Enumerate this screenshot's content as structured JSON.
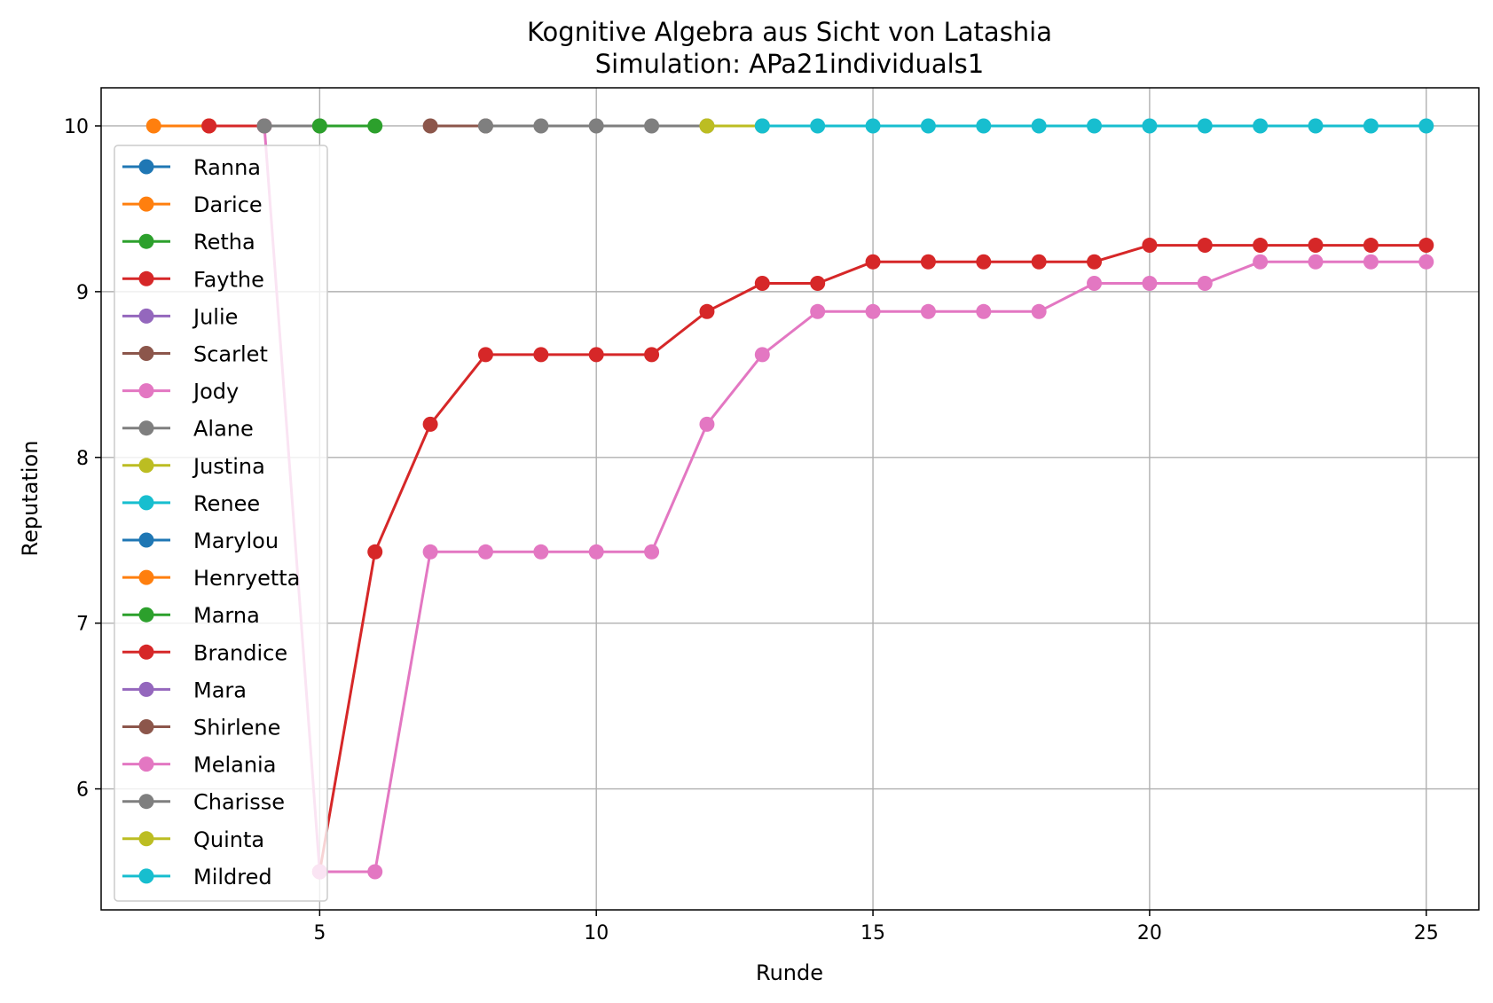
{
  "chart_data": {
    "type": "line",
    "title": "Kognitive Algebra aus Sicht von Latashia",
    "subtitle": "Simulation: APa21individuals1",
    "xlabel": "Runde",
    "ylabel": "Reputation",
    "xlim": [
      1.05,
      25.95
    ],
    "ylim": [
      5.27,
      10.23
    ],
    "xticks": [
      5,
      10,
      15,
      20,
      25
    ],
    "yticks": [
      6,
      7,
      8,
      9,
      10
    ],
    "grid": true,
    "legend_position": "left",
    "series": [
      {
        "name": "Ranna",
        "color": "#1f77b4",
        "x": [],
        "y": []
      },
      {
        "name": "Darice",
        "color": "#ff7f0e",
        "x": [
          2,
          3
        ],
        "y": [
          10,
          10
        ]
      },
      {
        "name": "Retha",
        "color": "#2ca02c",
        "x": [],
        "y": []
      },
      {
        "name": "Faythe",
        "color": "#d62728",
        "x": [
          3,
          4
        ],
        "y": [
          10,
          10
        ]
      },
      {
        "name": "Julie",
        "color": "#9467bd",
        "x": [],
        "y": []
      },
      {
        "name": "Scarlet",
        "color": "#8c564b",
        "x": [],
        "y": []
      },
      {
        "name": "Jody",
        "color": "#e377c2",
        "x": [
          4,
          5
        ],
        "y": [
          10,
          5.5
        ]
      },
      {
        "name": "Alane",
        "color": "#7f7f7f",
        "x": [
          4,
          5
        ],
        "y": [
          10,
          10
        ]
      },
      {
        "name": "Justina",
        "color": "#bcbd22",
        "x": [],
        "y": []
      },
      {
        "name": "Renee",
        "color": "#17becf",
        "x": [],
        "y": []
      },
      {
        "name": "Marylou",
        "color": "#1f77b4",
        "x": [],
        "y": []
      },
      {
        "name": "Henryetta",
        "color": "#ff7f0e",
        "x": [],
        "y": []
      },
      {
        "name": "Marna",
        "color": "#2ca02c",
        "x": [
          5,
          6
        ],
        "y": [
          10,
          10
        ]
      },
      {
        "name": "Brandice",
        "color": "#d62728",
        "x": [
          5,
          6,
          7,
          8,
          9,
          10,
          11,
          12,
          13,
          14,
          15,
          16,
          17,
          18,
          19,
          20,
          21,
          22,
          23,
          24,
          25
        ],
        "y": [
          5.5,
          7.43,
          8.2,
          8.62,
          8.62,
          8.62,
          8.62,
          8.88,
          9.05,
          9.05,
          9.18,
          9.18,
          9.18,
          9.18,
          9.18,
          9.28,
          9.28,
          9.28,
          9.28,
          9.28,
          9.28
        ]
      },
      {
        "name": "Mara",
        "color": "#9467bd",
        "x": [],
        "y": []
      },
      {
        "name": "Shirlene",
        "color": "#8c564b",
        "x": [
          7,
          8
        ],
        "y": [
          10,
          10
        ]
      },
      {
        "name": "Melania",
        "color": "#e377c2",
        "x": [
          5,
          6,
          7,
          8,
          9,
          10,
          11,
          12,
          13,
          14,
          15,
          16,
          17,
          18,
          19,
          20,
          21,
          22,
          23,
          24,
          25
        ],
        "y": [
          5.5,
          5.5,
          7.43,
          7.43,
          7.43,
          7.43,
          7.43,
          8.2,
          8.62,
          8.88,
          8.88,
          8.88,
          8.88,
          8.88,
          9.05,
          9.05,
          9.05,
          9.18,
          9.18,
          9.18,
          9.18
        ]
      },
      {
        "name": "Charisse",
        "color": "#7f7f7f",
        "x": [
          8,
          9,
          10,
          11,
          12
        ],
        "y": [
          10,
          10,
          10,
          10,
          10
        ]
      },
      {
        "name": "Quinta",
        "color": "#bcbd22",
        "x": [
          12,
          13
        ],
        "y": [
          10,
          10
        ]
      },
      {
        "name": "Mildred",
        "color": "#17becf",
        "x": [
          13,
          14,
          15,
          16,
          17,
          18,
          19,
          20,
          21,
          22,
          23,
          24,
          25
        ],
        "y": [
          10,
          10,
          10,
          10,
          10,
          10,
          10,
          10,
          10,
          10,
          10,
          10,
          10
        ]
      }
    ]
  }
}
